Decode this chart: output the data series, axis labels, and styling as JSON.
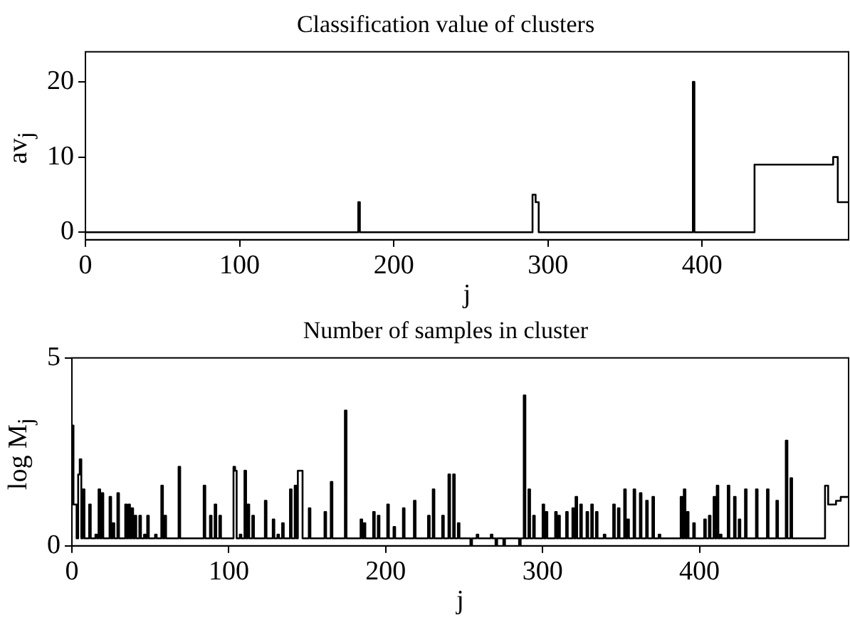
{
  "chart_data": [
    {
      "type": "step",
      "title": "Classification value of clusters",
      "xlabel": "j",
      "ylabel": "av$_{j}$",
      "xlim": [
        0,
        495
      ],
      "ylim": [
        -1,
        24
      ],
      "xticks": [
        0,
        100,
        200,
        300,
        400
      ],
      "yticks": [
        0,
        10,
        20
      ],
      "grid": false,
      "legend": false,
      "series": [
        {
          "color": "#000000",
          "x": [
            0,
            177,
            178,
            290,
            292,
            294,
            394,
            395,
            434,
            485,
            488,
            495
          ],
          "values": [
            0,
            4,
            0,
            5,
            4,
            0,
            20,
            0,
            9,
            10,
            4,
            4
          ]
        }
      ]
    },
    {
      "type": "step",
      "title": "Number of samples in cluster",
      "xlabel": "j",
      "ylabel": "log M$_{j}$",
      "xlim": [
        0,
        495
      ],
      "ylim": [
        0,
        5
      ],
      "xticks": [
        0,
        100,
        200,
        300,
        400
      ],
      "yticks": [
        0,
        5
      ],
      "grid": false,
      "legend": false,
      "series": [
        {
          "color": "#000000",
          "x": [
            0,
            1,
            2,
            3,
            4,
            5,
            6,
            7,
            8,
            11,
            12,
            15,
            16,
            17,
            18,
            19,
            20,
            24,
            25,
            26,
            27,
            29,
            30,
            34,
            35,
            36,
            37,
            38,
            39,
            40,
            41,
            43,
            44,
            46,
            47,
            48,
            49,
            53,
            54,
            57,
            58,
            59,
            60,
            68,
            69,
            84,
            85,
            88,
            89,
            91,
            92,
            94,
            95,
            103,
            104,
            105,
            107,
            108,
            110,
            111,
            112,
            113,
            115,
            116,
            123,
            124,
            128,
            129,
            131,
            132,
            134,
            135,
            139,
            140,
            142,
            143,
            144,
            145,
            146,
            147,
            151,
            152,
            161,
            162,
            165,
            166,
            174,
            175,
            184,
            185,
            186,
            187,
            192,
            193,
            195,
            196,
            201,
            202,
            205,
            206,
            211,
            212,
            218,
            219,
            227,
            228,
            230,
            231,
            236,
            237,
            240,
            241,
            243,
            244,
            246,
            247,
            254,
            255,
            258,
            259,
            267,
            268,
            270,
            271,
            275,
            276,
            285,
            286,
            288,
            289,
            291,
            292,
            294,
            295,
            300,
            301,
            302,
            303,
            308,
            309,
            310,
            311,
            315,
            316,
            319,
            320,
            321,
            322,
            324,
            325,
            328,
            329,
            331,
            332,
            334,
            335,
            339,
            340,
            345,
            346,
            348,
            349,
            352,
            353,
            354,
            355,
            358,
            359,
            362,
            363,
            366,
            367,
            370,
            371,
            374,
            375,
            388,
            389,
            390,
            391,
            392,
            393,
            396,
            397,
            403,
            404,
            406,
            407,
            409,
            410,
            411,
            412,
            413,
            414,
            418,
            419,
            422,
            423,
            425,
            426,
            429,
            430,
            436,
            437,
            443,
            444,
            449,
            450,
            455,
            456,
            458,
            459,
            480,
            482,
            487,
            490,
            495
          ],
          "values": [
            3.2,
            1.1,
            1.1,
            0.2,
            1.9,
            2.3,
            0.2,
            1.5,
            0.2,
            1.1,
            0.2,
            0.3,
            0.2,
            1.5,
            0.2,
            1.4,
            0.2,
            1.3,
            0.2,
            0.6,
            0.2,
            1.4,
            0.2,
            1.1,
            0.2,
            1.1,
            0.2,
            1.0,
            0.2,
            0.8,
            0.2,
            0.8,
            0.2,
            0.3,
            0.2,
            0.8,
            0.2,
            0.3,
            0.2,
            1.6,
            0.2,
            0.8,
            0.2,
            2.1,
            0.2,
            1.6,
            0.2,
            0.8,
            0.2,
            1.1,
            0.2,
            0.8,
            0.2,
            2.1,
            2.0,
            0.2,
            0.3,
            0.2,
            2.0,
            0.2,
            1.1,
            0.2,
            0.8,
            0.2,
            1.2,
            0.2,
            0.7,
            0.2,
            0.3,
            0.2,
            0.6,
            0.2,
            1.5,
            0.2,
            1.6,
            0.2,
            2.0,
            2.0,
            2.0,
            0.2,
            1.0,
            0.2,
            0.9,
            0.2,
            1.7,
            0.2,
            3.6,
            0.2,
            0.7,
            0.2,
            0.6,
            0.2,
            0.9,
            0.2,
            0.8,
            0.2,
            1.1,
            0.2,
            0.5,
            0.2,
            1.0,
            0.2,
            1.2,
            0.2,
            0.8,
            0.2,
            1.5,
            0.2,
            0.8,
            0.2,
            1.9,
            0.2,
            1.9,
            0.2,
            0.6,
            0.2,
            0,
            0.2,
            0.3,
            0.2,
            0.3,
            0.2,
            0,
            0.2,
            0,
            0.2,
            0,
            0.2,
            4.0,
            0.2,
            1.5,
            0.2,
            0.8,
            0.2,
            1.1,
            0.2,
            0.9,
            0.2,
            0.9,
            0.2,
            0.8,
            0.2,
            0.9,
            0.2,
            1.0,
            0.2,
            1.3,
            0.2,
            1.1,
            0.2,
            0.9,
            0.2,
            1.1,
            0.2,
            0.9,
            0.2,
            0.3,
            0.2,
            1.1,
            0.2,
            1.0,
            0.2,
            1.5,
            0.2,
            0.7,
            0.2,
            1.5,
            0.2,
            1.4,
            0.2,
            1.2,
            0.2,
            1.3,
            0.2,
            0.3,
            0.2,
            1.3,
            0.2,
            1.5,
            0.2,
            0.9,
            0.2,
            0.6,
            0.2,
            0.7,
            0.2,
            0.8,
            0.2,
            1.3,
            0.2,
            1.6,
            0.2,
            0.3,
            0.2,
            1.6,
            0.2,
            1.3,
            0.2,
            0.7,
            0.2,
            1.5,
            0.2,
            1.5,
            0.2,
            1.5,
            0.2,
            1.2,
            0.2,
            2.8,
            0.2,
            1.8,
            0.2,
            1.6,
            1.1,
            1.2,
            1.3,
            1.3
          ]
        }
      ]
    }
  ]
}
